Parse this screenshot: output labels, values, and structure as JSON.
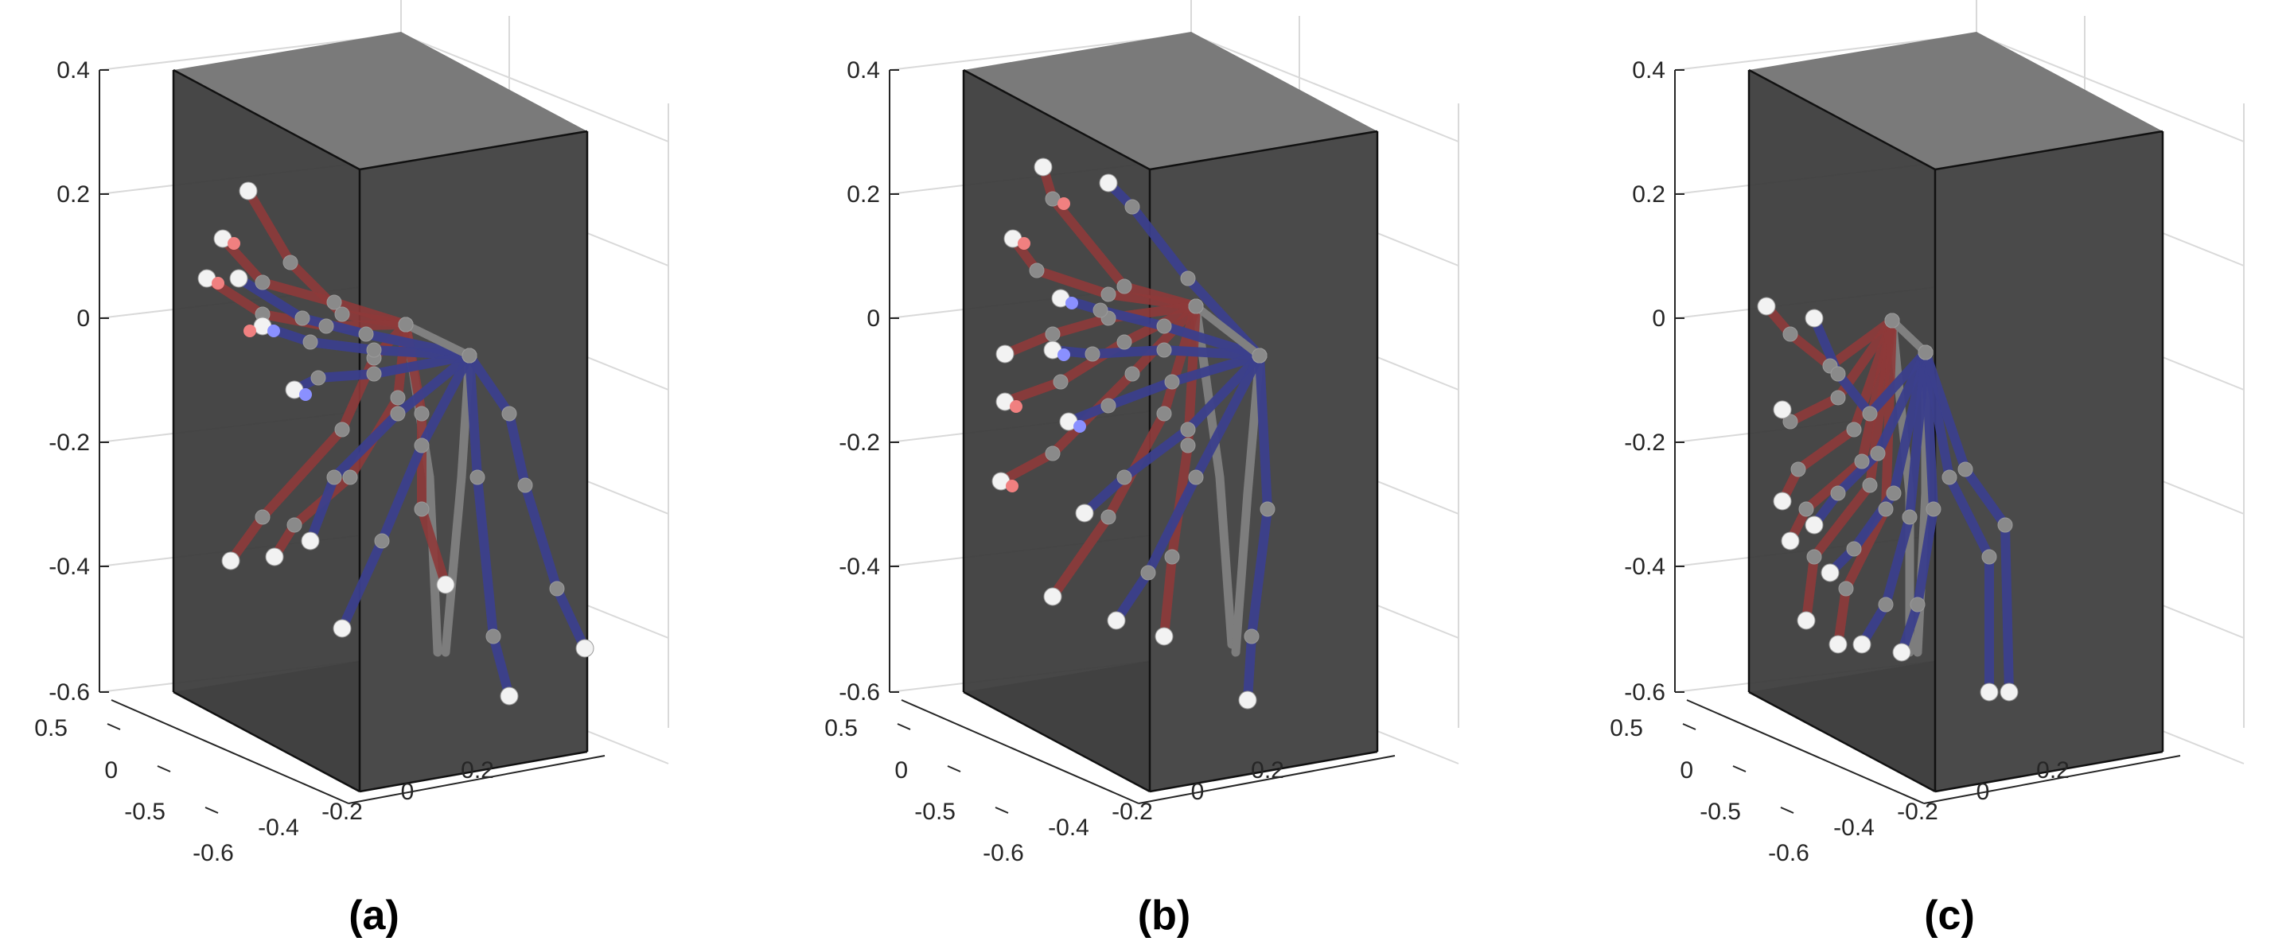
{
  "figure": {
    "panels": [
      {
        "label": "(a)",
        "z_ticks": [
          "0.4",
          "0.2",
          "0",
          "-0.2",
          "-0.4",
          "-0.6"
        ],
        "y_ticks": [
          "0.5",
          "0",
          "-0.5"
        ],
        "x_ticks": [
          "-0.6",
          "-0.4",
          "-0.2",
          "0",
          "0.2"
        ]
      },
      {
        "label": "(b)",
        "z_ticks": [
          "0.4",
          "0.2",
          "0",
          "-0.2",
          "-0.4",
          "-0.6"
        ],
        "y_ticks": [
          "0.5",
          "0",
          "-0.5"
        ],
        "x_ticks": [
          "-0.6",
          "-0.4",
          "-0.2",
          "0",
          "0.2"
        ]
      },
      {
        "label": "(c)",
        "z_ticks": [
          "0.4",
          "0.2",
          "0",
          "-0.2",
          "-0.4",
          "-0.6"
        ],
        "y_ticks": [
          "0.5",
          "0",
          "-0.5"
        ],
        "x_ticks": [
          "-0.6",
          "-0.4",
          "-0.2",
          "0",
          "0.2"
        ]
      }
    ],
    "colors": {
      "box_front": "#3d3d3d",
      "box_top": "#7a7a7a",
      "box_floor": "#6e6e6e",
      "box_side": "#4a4a4a",
      "grid": "#d9d9d9",
      "red_limb": "#8e3a3a",
      "blue_limb": "#3b3f8c",
      "joint": "#8a8a8a",
      "tip": "#f2f2f2",
      "pink_tip": "#f08080",
      "lightblue_tip": "#8a90ff"
    }
  }
}
